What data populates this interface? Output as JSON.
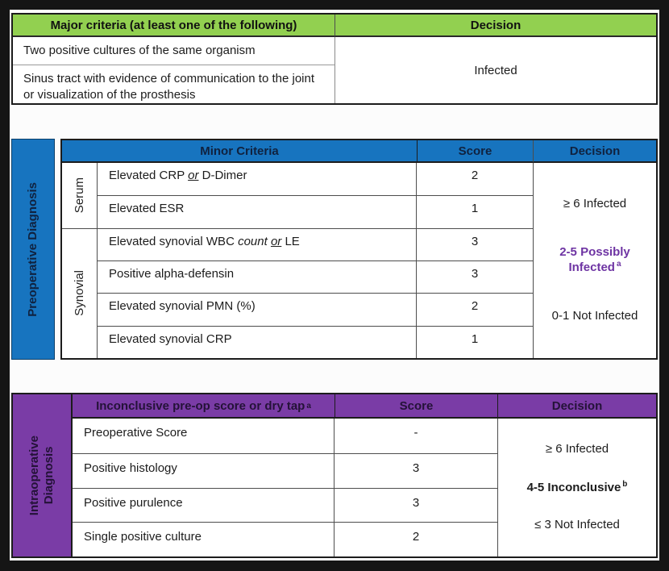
{
  "colors": {
    "green": "#92D050",
    "blue": "#1774BF",
    "purple": "#7A3CA6",
    "purple_text": "#6E34A3",
    "navy_on_blue": "#10223F",
    "plum_on_purple": "#241238"
  },
  "major_table": {
    "header": {
      "criteria": "Major criteria (at least one of the following)",
      "decision": "Decision"
    },
    "rows": [
      "Two positive cultures of the same organism",
      "Sinus tract with evidence of communication to the joint or visualization of the prosthesis"
    ],
    "decision": "Infected"
  },
  "preop_table": {
    "sidebar_lines": [
      "Preoperative Diagnosis"
    ],
    "header": {
      "criteria": "Minor Criteria",
      "score": "Score",
      "decision": "Decision"
    },
    "groups": [
      {
        "label": "Serum",
        "rowspan": 2
      },
      {
        "label": "Synovial",
        "rowspan": 4
      }
    ],
    "rows": [
      {
        "criteria": [
          {
            "text": "Elevated CRP "
          },
          {
            "text": "or",
            "style": "iu"
          },
          {
            "text": " D-Dimer"
          }
        ],
        "score": "2"
      },
      {
        "criteria": [
          {
            "text": "Elevated ESR"
          }
        ],
        "score": "1"
      },
      {
        "criteria": [
          {
            "text": "Elevated synovial WBC "
          },
          {
            "text": "count",
            "style": "i"
          },
          {
            "text": " "
          },
          {
            "text": "or",
            "style": "iu"
          },
          {
            "text": " LE"
          }
        ],
        "score": "3"
      },
      {
        "criteria": [
          {
            "text": "Positive alpha-defensin"
          }
        ],
        "score": "3"
      },
      {
        "criteria": [
          {
            "text": "Elevated synovial PMN (%)"
          }
        ],
        "score": "2"
      },
      {
        "criteria": [
          {
            "text": "Elevated synovial CRP"
          }
        ],
        "score": "1"
      }
    ],
    "decision": [
      {
        "text": "≥ 6 Infected"
      },
      {
        "text": "2-5 Possibly Infected",
        "sup": "a",
        "style": "purple"
      },
      {
        "text": "0-1 Not Infected"
      }
    ]
  },
  "intraop_table": {
    "sidebar_lines": [
      "Intraoperative",
      "Diagnosis"
    ],
    "header": {
      "criteria": {
        "text": "Inconclusive pre-op score or dry tap",
        "sup": "a"
      },
      "score": "Score",
      "decision": "Decision"
    },
    "rows": [
      {
        "criteria": "Preoperative Score",
        "score": "-"
      },
      {
        "criteria": "Positive histology",
        "score": "3"
      },
      {
        "criteria": "Positive purulence",
        "score": "3"
      },
      {
        "criteria": "Single positive culture",
        "score": "2"
      }
    ],
    "decision": [
      {
        "text": "≥ 6 Infected"
      },
      {
        "text": "4-5 Inconclusive",
        "sup": "b",
        "style": "bold"
      },
      {
        "text": "≤ 3 Not Infected"
      }
    ]
  }
}
